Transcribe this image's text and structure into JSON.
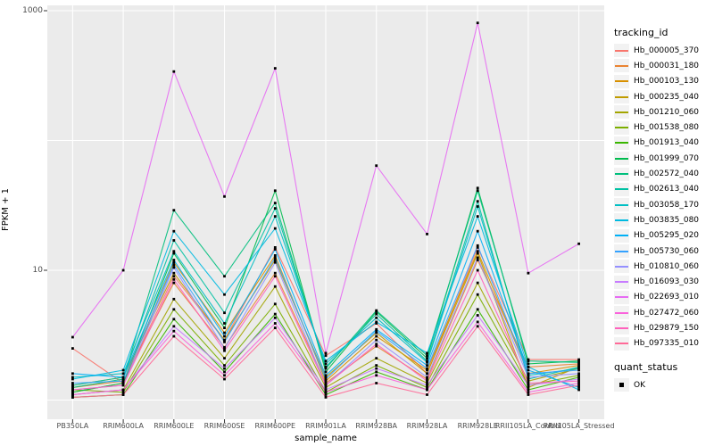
{
  "chart_data": {
    "type": "line",
    "title": "",
    "xlabel": "sample_name",
    "ylabel": "FPKM + 1",
    "y_scale": "log10",
    "ylim": [
      0.9,
      1100
    ],
    "y_ticks": [
      {
        "value": 1000,
        "label": "1000"
      },
      {
        "value": 10,
        "label": "10"
      }
    ],
    "y_gridlines": [
      1,
      10,
      100,
      1000
    ],
    "grid": "on",
    "legend_position": "right",
    "categories": [
      "PB350LA",
      "RRIM600LA",
      "RRIM600LE",
      "RRIM600SE",
      "RRIM600PE",
      "RRIM901LA",
      "RRIM928BA",
      "RRIM928LA",
      "RRIM928LE",
      "RRII105LA_Control",
      "RRII105LA_Stressed"
    ],
    "series": [
      {
        "id": "Hb_000005_370",
        "color": "#F8766D",
        "values": [
          2.5,
          1.35,
          9.0,
          2.9,
          15.0,
          2.2,
          3.9,
          1.6,
          15.0,
          2.05,
          2.05
        ]
      },
      {
        "id": "Hb_000031_180",
        "color": "#EA8331",
        "values": [
          1.25,
          1.4,
          8.0,
          2.55,
          9.5,
          1.35,
          2.6,
          1.45,
          12.0,
          1.8,
          1.9
        ]
      },
      {
        "id": "Hb_000103_130",
        "color": "#D89000",
        "values": [
          1.15,
          1.35,
          11.5,
          3.3,
          13.0,
          1.4,
          3.1,
          1.7,
          14.0,
          1.6,
          1.85
        ]
      },
      {
        "id": "Hb_000235_040",
        "color": "#C09B00",
        "values": [
          1.3,
          1.5,
          9.5,
          2.9,
          12.0,
          1.5,
          3.3,
          1.6,
          13.5,
          1.25,
          1.8
        ]
      },
      {
        "id": "Hb_001210_060",
        "color": "#A3A500",
        "values": [
          1.1,
          1.2,
          6.0,
          2.1,
          7.5,
          1.25,
          2.1,
          1.35,
          8.0,
          1.4,
          1.75
        ]
      },
      {
        "id": "Hb_001538_080",
        "color": "#7CAE00",
        "values": [
          1.2,
          1.15,
          5.0,
          1.85,
          5.5,
          1.15,
          1.85,
          1.25,
          6.5,
          1.3,
          1.55
        ]
      },
      {
        "id": "Hb_001913_040",
        "color": "#39B600",
        "values": [
          1.05,
          1.1,
          4.2,
          1.65,
          4.6,
          1.1,
          1.65,
          1.2,
          5.0,
          1.2,
          1.5
        ]
      },
      {
        "id": "Hb_001999_070",
        "color": "#00BB4E",
        "values": [
          1.15,
          1.35,
          13.5,
          3.6,
          41.0,
          1.65,
          4.8,
          2.1,
          43.0,
          1.9,
          2.0
        ]
      },
      {
        "id": "Hb_002572_040",
        "color": "#00BF7D",
        "values": [
          1.25,
          1.45,
          29.0,
          9.0,
          33.0,
          1.75,
          4.9,
          2.2,
          41.0,
          2.0,
          1.95
        ]
      },
      {
        "id": "Hb_002613_040",
        "color": "#00C1A3",
        "values": [
          1.3,
          1.5,
          17.0,
          4.7,
          30.0,
          1.8,
          4.6,
          2.0,
          34.0,
          1.45,
          1.8
        ]
      },
      {
        "id": "Hb_003058_170",
        "color": "#00BFC4",
        "values": [
          1.5,
          1.6,
          14.0,
          3.9,
          26.0,
          1.9,
          4.3,
          1.95,
          31.0,
          1.55,
          1.75
        ]
      },
      {
        "id": "Hb_003835_080",
        "color": "#00BAE0",
        "values": [
          1.45,
          1.7,
          20.0,
          6.5,
          21.0,
          2.0,
          4.0,
          2.3,
          26.0,
          1.8,
          1.2
        ]
      },
      {
        "id": "Hb_005295_020",
        "color": "#00B0F6",
        "values": [
          1.6,
          1.5,
          12.0,
          3.1,
          14.5,
          1.55,
          3.5,
          1.85,
          20.0,
          1.7,
          1.25
        ]
      },
      {
        "id": "Hb_005730_060",
        "color": "#35A2FF",
        "values": [
          1.35,
          1.4,
          11.0,
          2.8,
          12.5,
          1.45,
          3.4,
          1.75,
          15.5,
          1.6,
          1.7
        ]
      },
      {
        "id": "Hb_010810_060",
        "color": "#9590FF",
        "values": [
          1.2,
          1.3,
          10.5,
          2.5,
          11.5,
          1.3,
          2.9,
          1.5,
          12.5,
          1.5,
          1.6
        ]
      },
      {
        "id": "Hb_016093_030",
        "color": "#C77CFF",
        "values": [
          1.1,
          1.2,
          3.7,
          1.75,
          4.3,
          1.2,
          1.75,
          1.3,
          4.5,
          1.3,
          1.45
        ]
      },
      {
        "id": "Hb_022693_010",
        "color": "#E76BF3",
        "values": [
          3.05,
          10.0,
          340.0,
          37.0,
          360.0,
          2.3,
          64.0,
          19.0,
          805.0,
          9.5,
          16.0
        ]
      },
      {
        "id": "Hb_027472_060",
        "color": "#FA62DB",
        "values": [
          1.1,
          1.2,
          3.4,
          1.55,
          3.9,
          1.15,
          1.55,
          1.2,
          4.0,
          1.15,
          1.35
        ]
      },
      {
        "id": "Hb_029879_150",
        "color": "#FF62BC",
        "values": [
          1.2,
          1.3,
          8.5,
          2.4,
          9.0,
          1.3,
          2.7,
          1.4,
          10.0,
          1.35,
          1.4
        ]
      },
      {
        "id": "Hb_097335_010",
        "color": "#FF6A98",
        "values": [
          1.05,
          1.1,
          3.1,
          1.45,
          3.6,
          1.05,
          1.35,
          1.1,
          3.7,
          1.1,
          1.3
        ]
      }
    ]
  },
  "legend": {
    "tracking_title": "tracking_id",
    "quant_title": "quant_status",
    "quant_ok_label": "OK"
  },
  "colors": {
    "panel_bg": "#EBEBEB",
    "grid": "#FFFFFF",
    "tick_mark": "#333333",
    "tick_text": "#4D4D4D",
    "legend_key_bg": "#F2F2F2",
    "point": "#000000"
  }
}
